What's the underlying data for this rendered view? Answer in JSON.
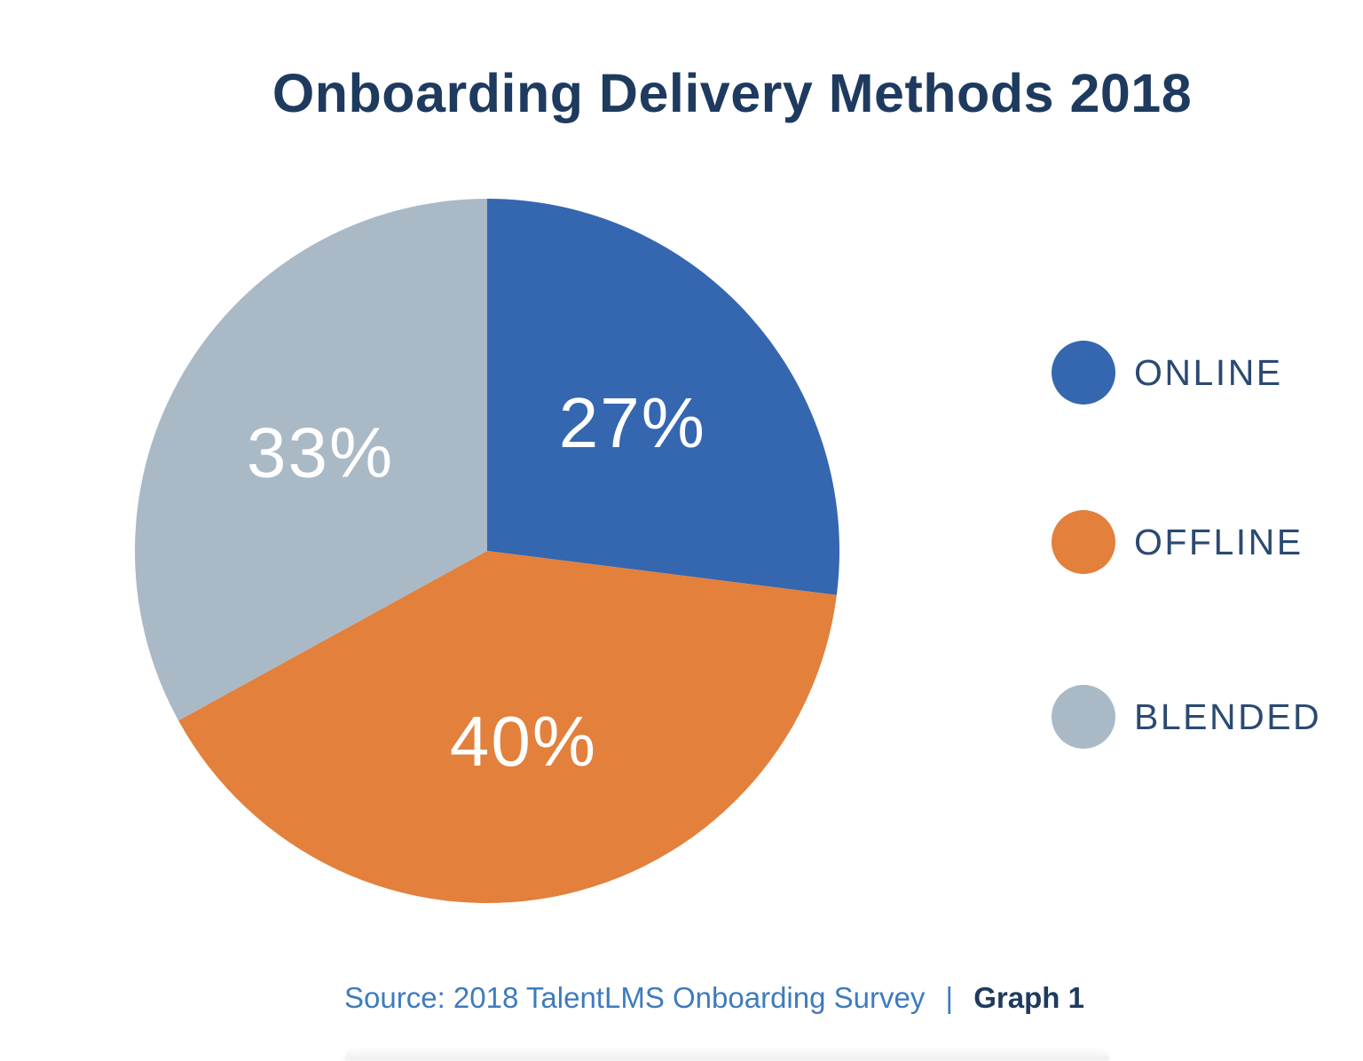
{
  "header": {
    "title": "Onboarding Delivery Methods 2018"
  },
  "chart_data": {
    "type": "pie",
    "title": "Onboarding Delivery Methods 2018",
    "start_angle": "12-oclock",
    "direction": "clockwise",
    "legend_position": "right",
    "data_label_color": "#ffffff",
    "slices": [
      {
        "label": "ONLINE",
        "value": 27,
        "display": "27%",
        "color": "#3467af"
      },
      {
        "label": "OFFLINE",
        "value": 40,
        "display": "40%",
        "color": "#e2803c"
      },
      {
        "label": "BLENDED",
        "value": 33,
        "display": "33%",
        "color": "#aab9c6"
      }
    ],
    "source": "Source: 2018 TalentLMS Onboarding Survey",
    "graph_label": "Graph 1"
  },
  "legend": {
    "items": [
      {
        "label": "ONLINE",
        "color": "#3467af"
      },
      {
        "label": "OFFLINE",
        "color": "#e2803c"
      },
      {
        "label": "BLENDED",
        "color": "#aab9c6"
      }
    ]
  },
  "footer": {
    "source_text": "Source: 2018 TalentLMS Onboarding Survey",
    "separator": "|",
    "graph_label": "Graph 1"
  },
  "colors": {
    "title_text": "#1e3a5e",
    "legend_text": "#2b4a72",
    "source_text": "#3e7bbe",
    "graph_label_text": "#1e3a5e"
  }
}
